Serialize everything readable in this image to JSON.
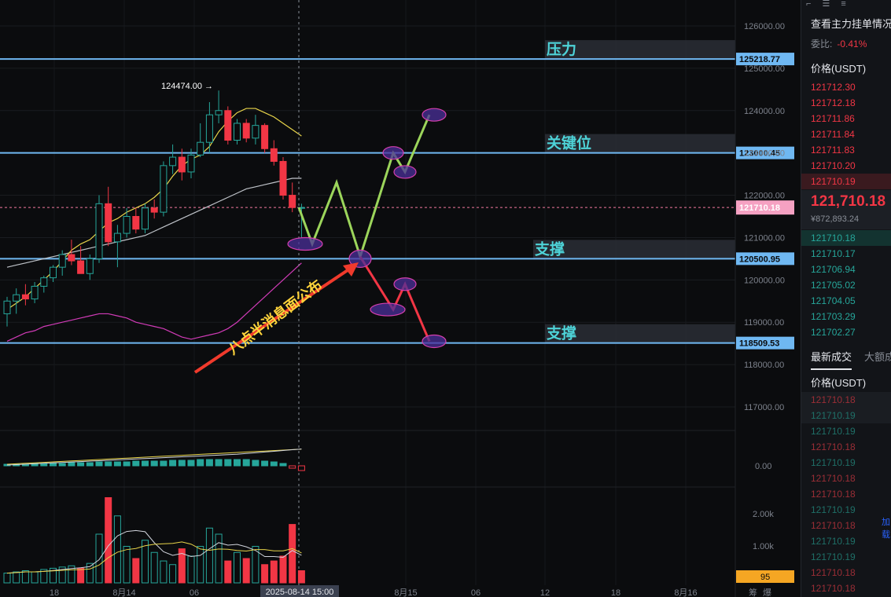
{
  "chart_data": {
    "type": "candlestick",
    "timeframe_note": "",
    "y_ticks": [
      "126000.00",
      "125000.00",
      "124000.00",
      "123000.00",
      "122000.00",
      "121000.00",
      "120000.00",
      "119000.00",
      "118000.00",
      "117000.00"
    ],
    "ylim": [
      116300,
      126500
    ],
    "x_ticks": [
      "18",
      "8月14",
      "06",
      "8月15",
      "06",
      "12",
      "18",
      "8月16"
    ],
    "cursor_time": "2025-08-14 15:00",
    "high_marker": "124474.00",
    "candles": [
      {
        "o": 119200,
        "h": 119600,
        "l": 118900,
        "c": 119500
      },
      {
        "o": 119500,
        "h": 119800,
        "l": 119200,
        "c": 119650
      },
      {
        "o": 119650,
        "h": 119900,
        "l": 119400,
        "c": 119550
      },
      {
        "o": 119550,
        "h": 119950,
        "l": 119450,
        "c": 119850
      },
      {
        "o": 119850,
        "h": 120100,
        "l": 119700,
        "c": 120050
      },
      {
        "o": 120050,
        "h": 120350,
        "l": 119950,
        "c": 120300
      },
      {
        "o": 120300,
        "h": 120700,
        "l": 120100,
        "c": 120600
      },
      {
        "o": 120600,
        "h": 120950,
        "l": 120350,
        "c": 120450
      },
      {
        "o": 120450,
        "h": 120800,
        "l": 120200,
        "c": 120150
      },
      {
        "o": 120150,
        "h": 120600,
        "l": 120000,
        "c": 120500
      },
      {
        "o": 120500,
        "h": 122000,
        "l": 120400,
        "c": 121800
      },
      {
        "o": 121800,
        "h": 122200,
        "l": 120800,
        "c": 120900
      },
      {
        "o": 120900,
        "h": 121300,
        "l": 120300,
        "c": 121100
      },
      {
        "o": 121100,
        "h": 121700,
        "l": 121000,
        "c": 121500
      },
      {
        "o": 121500,
        "h": 121700,
        "l": 121100,
        "c": 121200
      },
      {
        "o": 121200,
        "h": 121800,
        "l": 121100,
        "c": 121700
      },
      {
        "o": 121700,
        "h": 121900,
        "l": 121450,
        "c": 121600
      },
      {
        "o": 121600,
        "h": 122800,
        "l": 121500,
        "c": 122700
      },
      {
        "o": 122700,
        "h": 123200,
        "l": 122500,
        "c": 122900
      },
      {
        "o": 122900,
        "h": 123100,
        "l": 122350,
        "c": 122550
      },
      {
        "o": 122550,
        "h": 123100,
        "l": 122400,
        "c": 122950
      },
      {
        "o": 122950,
        "h": 123700,
        "l": 122900,
        "c": 123250
      },
      {
        "o": 123250,
        "h": 124200,
        "l": 123000,
        "c": 123900
      },
      {
        "o": 123900,
        "h": 124474,
        "l": 123700,
        "c": 124000
      },
      {
        "o": 124000,
        "h": 124100,
        "l": 123200,
        "c": 123300
      },
      {
        "o": 123300,
        "h": 123800,
        "l": 123200,
        "c": 123700
      },
      {
        "o": 123700,
        "h": 123800,
        "l": 123250,
        "c": 123350
      },
      {
        "o": 123350,
        "h": 123900,
        "l": 123200,
        "c": 123650
      },
      {
        "o": 123650,
        "h": 123700,
        "l": 123000,
        "c": 123100
      },
      {
        "o": 123100,
        "h": 123300,
        "l": 122700,
        "c": 122800
      },
      {
        "o": 122800,
        "h": 122900,
        "l": 121900,
        "c": 122000
      },
      {
        "o": 122000,
        "h": 122300,
        "l": 121600,
        "c": 121710
      },
      {
        "o": 121710,
        "h": 121800,
        "l": 121000,
        "c": 121710
      }
    ],
    "ma_yellow": [
      119300,
      119450,
      119600,
      119800,
      120000,
      120200,
      120450,
      120700,
      120850,
      120950,
      121150,
      121350,
      121450,
      121600,
      121700,
      121800,
      121950,
      122150,
      122450,
      122700,
      122850,
      122950,
      123150,
      123500,
      123750,
      123950,
      124050,
      124050,
      123950,
      123850,
      123700,
      123550,
      123400
    ],
    "ma_white": [
      120300,
      120350,
      120400,
      120450,
      120500,
      120550,
      120600,
      120650,
      120700,
      120750,
      120800,
      120850,
      120900,
      120950,
      121000,
      121050,
      121150,
      121250,
      121350,
      121450,
      121550,
      121650,
      121750,
      121850,
      121950,
      122050,
      122150,
      122200,
      122250,
      122300,
      122350,
      122400,
      122400
    ],
    "ma_pink": [
      118550,
      118650,
      118750,
      118800,
      118900,
      118950,
      119000,
      119050,
      119100,
      119150,
      119200,
      119200,
      119150,
      119100,
      119000,
      118950,
      118900,
      118850,
      118750,
      118650,
      118600,
      118650,
      118700,
      118750,
      118850,
      119000,
      119200,
      119400,
      119600,
      119800,
      120000,
      120200,
      120400
    ],
    "volume": [
      8,
      9,
      10,
      9,
      11,
      12,
      13,
      14,
      12,
      16,
      40,
      70,
      55,
      30,
      20,
      35,
      25,
      18,
      15,
      28,
      22,
      30,
      45,
      40,
      18,
      25,
      20,
      30,
      15,
      18,
      22,
      48,
      10
    ],
    "volume_up": [
      true,
      true,
      true,
      true,
      true,
      true,
      true,
      true,
      false,
      true,
      true,
      false,
      true,
      true,
      false,
      true,
      true,
      true,
      true,
      false,
      true,
      true,
      true,
      true,
      false,
      true,
      false,
      true,
      false,
      false,
      false,
      false,
      false
    ],
    "volume_ticks": [
      "2.00k",
      "1.00k"
    ],
    "volume_current": "95",
    "macd_zero": "0.00",
    "levels": [
      {
        "label": "压力",
        "value": "125218.77",
        "price": 125218.77
      },
      {
        "label": "关键位",
        "value": "123000.45",
        "price": 123000.45
      },
      {
        "label": "支撑",
        "value": "120500.95",
        "price": 120500.95
      },
      {
        "label": "支撑",
        "value": "118509.53",
        "price": 118509.53
      }
    ],
    "current_price_tag": "121710.18",
    "current_price": 121710.18,
    "annotation_text": "八点半消息面公布",
    "bull_path_prices": [
      121710,
      120850,
      122300,
      120550,
      123000,
      122550,
      123900
    ],
    "bear_path_prices": [
      120550,
      119300,
      119900,
      118550
    ],
    "ellipse_prices": [
      {
        "i": 0,
        "p": 120850
      },
      {
        "i": 1,
        "p": 120500
      },
      {
        "i": 2,
        "p": 123000
      },
      {
        "i": 3,
        "p": 122550
      },
      {
        "i": 4,
        "p": 123900
      },
      {
        "i": 5,
        "p": 119300
      },
      {
        "i": 6,
        "p": 119900
      },
      {
        "i": 7,
        "p": 118550
      }
    ],
    "colors": {
      "up": "#26a69a",
      "down": "#f23645",
      "level": "#6fb8f2",
      "ma_yellow": "#e8d44a",
      "ma_white": "#bfc3c9",
      "ma_pink": "#d13bb7",
      "bull": "#9cd55b",
      "bear": "#f23645",
      "arrow": "#f03a2c"
    }
  },
  "sidebar": {
    "icons": [
      "layout-icon",
      "orderbook-icon",
      "list-icon"
    ],
    "title": "查看主力挂单情况",
    "ratio_label": "委比:",
    "ratio_value": "-0.41%",
    "price_header": "价格(USDT)",
    "asks": [
      "121712.30",
      "121712.18",
      "121711.86",
      "121711.84",
      "121711.83",
      "121710.20",
      "121710.19"
    ],
    "last_price": "121,710.18",
    "last_price_cny": "¥872,893.24",
    "bids": [
      "121710.18",
      "121710.17",
      "121706.94",
      "121705.02",
      "121704.05",
      "121703.29",
      "121702.27"
    ],
    "tab_trades": "最新成交",
    "tab_large": "大额成交",
    "trades_price_header": "价格(USDT)",
    "trades": [
      {
        "p": "121710.18",
        "side": "sell"
      },
      {
        "p": "121710.19",
        "side": "buy"
      },
      {
        "p": "121710.19",
        "side": "buy"
      },
      {
        "p": "121710.18",
        "side": "sell"
      },
      {
        "p": "121710.19",
        "side": "buy"
      },
      {
        "p": "121710.18",
        "side": "sell"
      },
      {
        "p": "121710.18",
        "side": "sell"
      },
      {
        "p": "121710.19",
        "side": "buy"
      },
      {
        "p": "121710.18",
        "side": "sell"
      },
      {
        "p": "121710.19",
        "side": "buy"
      },
      {
        "p": "121710.19",
        "side": "buy"
      },
      {
        "p": "121710.18",
        "side": "sell"
      },
      {
        "p": "121710.18",
        "side": "sell"
      }
    ],
    "add_more": "加载"
  },
  "bottom_right": [
    "筹",
    "爆"
  ]
}
